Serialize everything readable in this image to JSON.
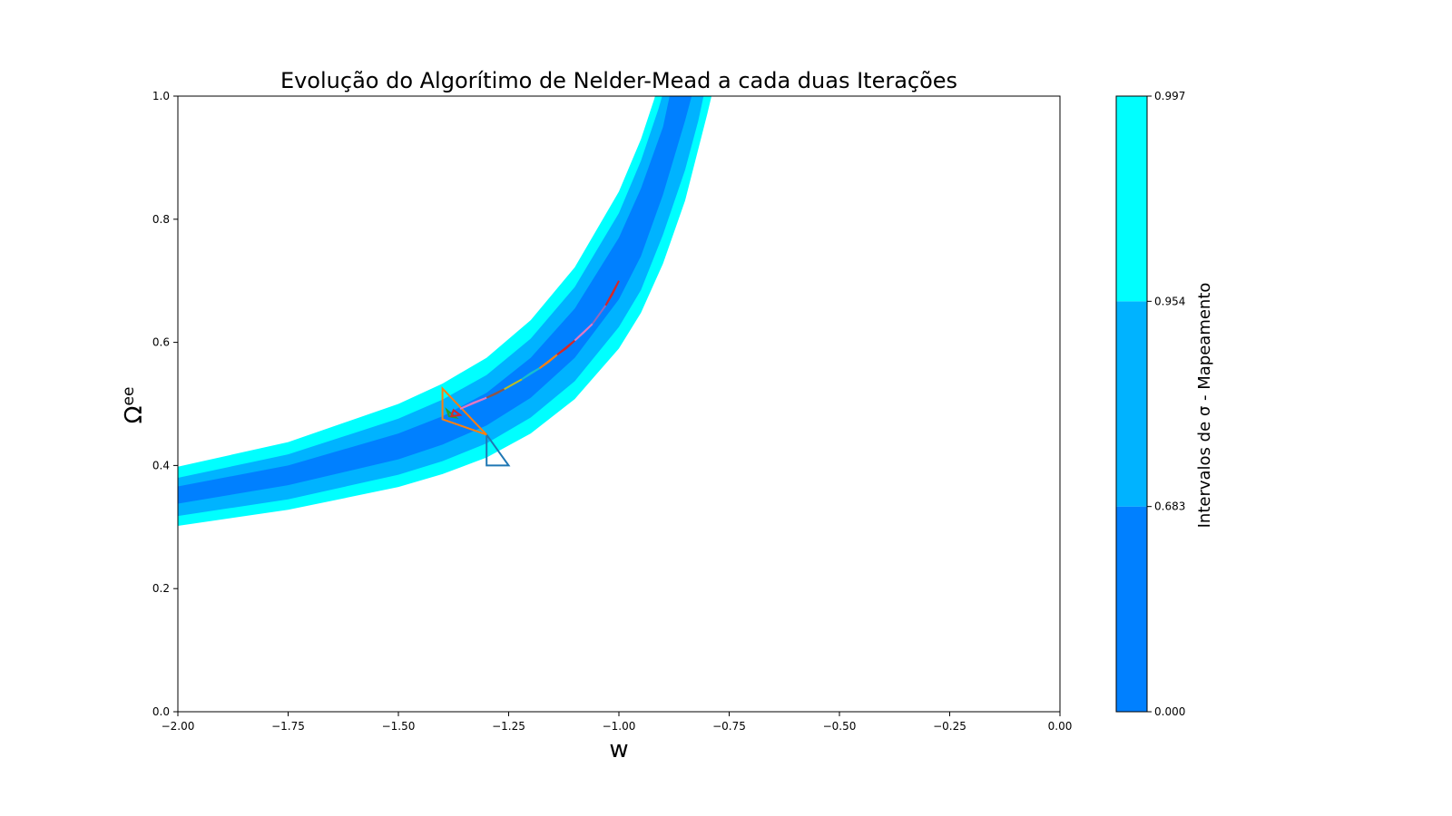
{
  "chart_data": {
    "type": "contourf",
    "title": "Evolução do Algorítimo de Nelder-Mead a cada duas Iterações",
    "xlabel": "w",
    "ylabel_base": "Ω",
    "ylabel_sub": "ee",
    "xlim": [
      -2.0,
      0.0
    ],
    "ylim": [
      0.0,
      1.0
    ],
    "x_ticks": [
      -2.0,
      -1.75,
      -1.5,
      -1.25,
      -1.0,
      -0.75,
      -0.5,
      -0.25,
      0.0
    ],
    "x_tick_labels": [
      "−2.00",
      "−1.75",
      "−1.50",
      "−1.25",
      "−1.00",
      "−0.75",
      "−0.50",
      "−0.25",
      "0.00"
    ],
    "y_ticks": [
      0.0,
      0.2,
      0.4,
      0.6,
      0.8,
      1.0
    ],
    "y_tick_labels": [
      "0.0",
      "0.2",
      "0.4",
      "0.6",
      "0.8",
      "1.0"
    ],
    "grid": false,
    "contour_levels": [
      {
        "level": 0.683,
        "color": "#0080ff",
        "lower": [
          [
            -2.0,
            0.338
          ],
          [
            -1.75,
            0.368
          ],
          [
            -1.5,
            0.41
          ],
          [
            -1.4,
            0.434
          ],
          [
            -1.3,
            0.465
          ],
          [
            -1.2,
            0.51
          ],
          [
            -1.1,
            0.575
          ],
          [
            -1.0,
            0.67
          ],
          [
            -0.95,
            0.74
          ],
          [
            -0.9,
            0.84
          ],
          [
            -0.85,
            0.96
          ],
          [
            -0.835,
            1.0
          ]
        ],
        "upper": [
          [
            -2.0,
            0.366
          ],
          [
            -1.75,
            0.4
          ],
          [
            -1.5,
            0.452
          ],
          [
            -1.4,
            0.48
          ],
          [
            -1.3,
            0.518
          ],
          [
            -1.2,
            0.575
          ],
          [
            -1.1,
            0.655
          ],
          [
            -1.0,
            0.77
          ],
          [
            -0.95,
            0.85
          ],
          [
            -0.9,
            0.95
          ],
          [
            -0.885,
            1.0
          ]
        ]
      },
      {
        "level": 0.954,
        "color": "#00b3ff",
        "lower": [
          [
            -2.0,
            0.318
          ],
          [
            -1.75,
            0.345
          ],
          [
            -1.5,
            0.385
          ],
          [
            -1.4,
            0.407
          ],
          [
            -1.3,
            0.436
          ],
          [
            -1.2,
            0.478
          ],
          [
            -1.1,
            0.537
          ],
          [
            -1.0,
            0.625
          ],
          [
            -0.95,
            0.685
          ],
          [
            -0.9,
            0.775
          ],
          [
            -0.85,
            0.88
          ],
          [
            -0.82,
            0.96
          ],
          [
            -0.808,
            1.0
          ]
        ],
        "upper": [
          [
            -2.0,
            0.38
          ],
          [
            -1.75,
            0.418
          ],
          [
            -1.5,
            0.476
          ],
          [
            -1.4,
            0.507
          ],
          [
            -1.3,
            0.547
          ],
          [
            -1.2,
            0.606
          ],
          [
            -1.1,
            0.69
          ],
          [
            -1.0,
            0.81
          ],
          [
            -0.95,
            0.895
          ],
          [
            -0.91,
            0.98
          ],
          [
            -0.902,
            1.0
          ]
        ]
      },
      {
        "level": 0.997,
        "color": "#00ffff",
        "lower": [
          [
            -2.0,
            0.302
          ],
          [
            -1.75,
            0.328
          ],
          [
            -1.5,
            0.365
          ],
          [
            -1.4,
            0.386
          ],
          [
            -1.3,
            0.413
          ],
          [
            -1.2,
            0.452
          ],
          [
            -1.1,
            0.508
          ],
          [
            -1.0,
            0.59
          ],
          [
            -0.95,
            0.648
          ],
          [
            -0.9,
            0.728
          ],
          [
            -0.85,
            0.83
          ],
          [
            -0.8,
            0.97
          ],
          [
            -0.79,
            1.0
          ]
        ],
        "upper": [
          [
            -2.0,
            0.398
          ],
          [
            -1.75,
            0.438
          ],
          [
            -1.5,
            0.5
          ],
          [
            -1.4,
            0.533
          ],
          [
            -1.3,
            0.575
          ],
          [
            -1.2,
            0.636
          ],
          [
            -1.1,
            0.722
          ],
          [
            -1.0,
            0.845
          ],
          [
            -0.95,
            0.93
          ],
          [
            -0.92,
            0.995
          ],
          [
            -0.918,
            1.0
          ]
        ]
      }
    ],
    "simplices": [
      {
        "color": "#1f77b4",
        "vertices": [
          [
            -1.3,
            0.45
          ],
          [
            -1.3,
            0.4
          ],
          [
            -1.25,
            0.4
          ]
        ]
      },
      {
        "color": "#ff7f0e",
        "vertices": [
          [
            -1.4,
            0.525
          ],
          [
            -1.3,
            0.45
          ],
          [
            -1.4,
            0.475
          ]
        ]
      },
      {
        "color": "#2ca02c",
        "vertices": [
          [
            -1.39,
            0.49
          ],
          [
            -1.37,
            0.478
          ],
          [
            -1.385,
            0.48
          ]
        ]
      },
      {
        "color": "#d62728",
        "vertices": [
          [
            -1.38,
            0.48
          ],
          [
            -1.36,
            0.482
          ],
          [
            -1.375,
            0.49
          ]
        ]
      },
      {
        "color": "#e377c2",
        "vertices": [
          [
            -1.36,
            0.492
          ],
          [
            -1.3,
            0.51
          ],
          [
            -1.33,
            0.502
          ]
        ]
      },
      {
        "color": "#8c564b",
        "vertices": [
          [
            -1.3,
            0.51
          ],
          [
            -1.26,
            0.524
          ],
          [
            -1.28,
            0.516
          ]
        ]
      },
      {
        "color": "#bcbd22",
        "vertices": [
          [
            -1.26,
            0.524
          ],
          [
            -1.22,
            0.54
          ],
          [
            -1.24,
            0.532
          ]
        ]
      },
      {
        "color": "#17becf",
        "vertices": [
          [
            -1.22,
            0.54
          ],
          [
            -1.18,
            0.558
          ],
          [
            -1.2,
            0.55
          ]
        ]
      },
      {
        "color": "#ff7f0e",
        "vertices": [
          [
            -1.18,
            0.558
          ],
          [
            -1.14,
            0.58
          ],
          [
            -1.16,
            0.568
          ]
        ]
      },
      {
        "color": "#d62728",
        "vertices": [
          [
            -1.14,
            0.58
          ],
          [
            -1.1,
            0.603
          ],
          [
            -1.12,
            0.59
          ]
        ]
      },
      {
        "color": "#e377c2",
        "vertices": [
          [
            -1.1,
            0.603
          ],
          [
            -1.06,
            0.63
          ],
          [
            -1.08,
            0.616
          ]
        ]
      },
      {
        "color": "#9467bd",
        "vertices": [
          [
            -1.06,
            0.63
          ],
          [
            -1.03,
            0.66
          ],
          [
            -1.045,
            0.645
          ]
        ]
      },
      {
        "color": "#d62728",
        "vertices": [
          [
            -1.03,
            0.66
          ],
          [
            -1.0,
            0.7
          ],
          [
            -1.015,
            0.678
          ]
        ]
      }
    ],
    "colorbar": {
      "label": "Intervalos de σ - Mapeamento",
      "boundaries": [
        0.0,
        0.683,
        0.954,
        0.997
      ],
      "tick_labels": [
        "0.000",
        "0.683",
        "0.954",
        "0.997"
      ],
      "colors": [
        "#0080ff",
        "#00b3ff",
        "#00ffff"
      ]
    }
  }
}
